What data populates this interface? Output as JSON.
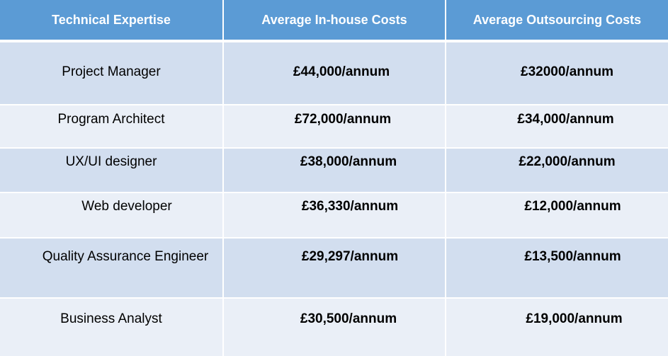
{
  "table": {
    "headers": [
      "Technical Expertise",
      "Average In-house Costs",
      "Average Outsourcing Costs"
    ],
    "rows": [
      {
        "expertise": "Project Manager",
        "in_house": "£44,000/annum",
        "outsourcing": "£32000/annum"
      },
      {
        "expertise": "Program Architect",
        "in_house": "£72,000/annum",
        "outsourcing": "£34,000/annum"
      },
      {
        "expertise": "UX/UI designer",
        "in_house": "£38,000/annum",
        "outsourcing": "£22,000/annum"
      },
      {
        "expertise": "Web developer",
        "in_house": "£36,330/annum",
        "outsourcing": "£12,000/annum"
      },
      {
        "expertise": "Quality Assurance Engineer",
        "in_house": "£29,297/annum",
        "outsourcing": "£13,500/annum"
      },
      {
        "expertise": "Business Analyst",
        "in_house": "£30,500/annum",
        "outsourcing": "£19,000/annum"
      }
    ]
  },
  "colors": {
    "header_bg": "#5b9bd5",
    "row_dark": "#d2deef",
    "row_light": "#eaeff7",
    "header_text": "#ffffff"
  }
}
